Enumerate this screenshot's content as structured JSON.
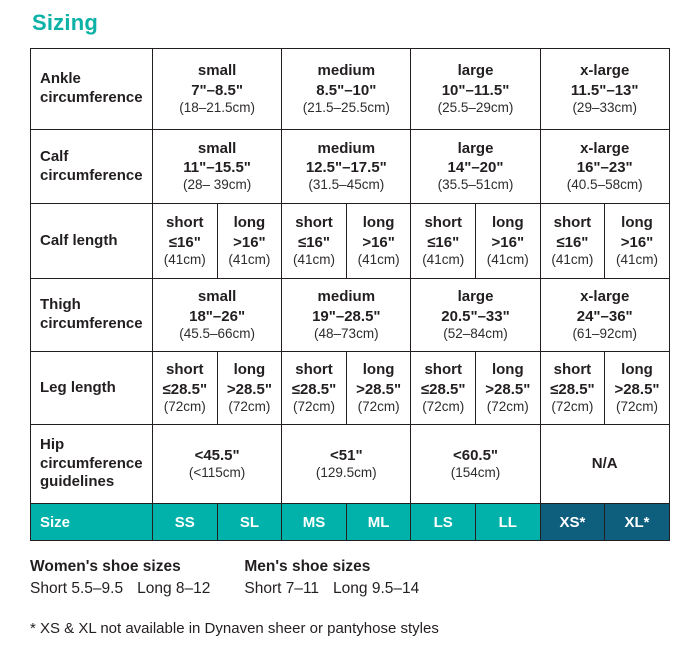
{
  "title": "Sizing",
  "colors": {
    "accent_teal": "#00b2a9",
    "dark_teal": "#0e5e7e",
    "text": "#231f20",
    "size_row_text": "#ffffff"
  },
  "table": {
    "rows": [
      {
        "label": "Ankle circumference",
        "cells": [
          {
            "size": "small",
            "range": "7\"–8.5\"",
            "metric": "(18–21.5cm)"
          },
          {
            "size": "medium",
            "range": "8.5\"–10\"",
            "metric": "(21.5–25.5cm)"
          },
          {
            "size": "large",
            "range": "10\"–11.5\"",
            "metric": "(25.5–29cm)"
          },
          {
            "size": "x-large",
            "range": "11.5\"–13\"",
            "metric": "(29–33cm)"
          }
        ]
      },
      {
        "label": "Calf circumference",
        "cells": [
          {
            "size": "small",
            "range": "11\"–15.5\"",
            "metric": "(28– 39cm)"
          },
          {
            "size": "medium",
            "range": "12.5\"–17.5\"",
            "metric": "(31.5–45cm)"
          },
          {
            "size": "large",
            "range": "14\"–20\"",
            "metric": "(35.5–51cm)"
          },
          {
            "size": "x-large",
            "range": "16\"–23\"",
            "metric": "(40.5–58cm)"
          }
        ]
      },
      {
        "label": "Calf length",
        "cells": [
          {
            "variant": "short",
            "range": "≤16\"",
            "metric": "(41cm)"
          },
          {
            "variant": "long",
            "range": ">16\"",
            "metric": "(41cm)"
          },
          {
            "variant": "short",
            "range": "≤16\"",
            "metric": "(41cm)"
          },
          {
            "variant": "long",
            "range": ">16\"",
            "metric": "(41cm)"
          },
          {
            "variant": "short",
            "range": "≤16\"",
            "metric": "(41cm)"
          },
          {
            "variant": "long",
            "range": ">16\"",
            "metric": "(41cm)"
          },
          {
            "variant": "short",
            "range": "≤16\"",
            "metric": "(41cm)"
          },
          {
            "variant": "long",
            "range": ">16\"",
            "metric": "(41cm)"
          }
        ]
      },
      {
        "label": "Thigh circumference",
        "cells": [
          {
            "size": "small",
            "range": "18\"–26\"",
            "metric": "(45.5–66cm)"
          },
          {
            "size": "medium",
            "range": "19\"–28.5\"",
            "metric": "(48–73cm)"
          },
          {
            "size": "large",
            "range": "20.5\"–33\"",
            "metric": "(52–84cm)"
          },
          {
            "size": "x-large",
            "range": "24\"–36\"",
            "metric": "(61–92cm)"
          }
        ]
      },
      {
        "label": "Leg length",
        "cells": [
          {
            "variant": "short",
            "range": "≤28.5\"",
            "metric": "(72cm)"
          },
          {
            "variant": "long",
            "range": ">28.5\"",
            "metric": "(72cm)"
          },
          {
            "variant": "short",
            "range": "≤28.5\"",
            "metric": "(72cm)"
          },
          {
            "variant": "long",
            "range": ">28.5\"",
            "metric": "(72cm)"
          },
          {
            "variant": "short",
            "range": "≤28.5\"",
            "metric": "(72cm)"
          },
          {
            "variant": "long",
            "range": ">28.5\"",
            "metric": "(72cm)"
          },
          {
            "variant": "short",
            "range": "≤28.5\"",
            "metric": "(72cm)"
          },
          {
            "variant": "long",
            "range": ">28.5\"",
            "metric": "(72cm)"
          }
        ]
      },
      {
        "label": "Hip circumference guidelines",
        "cells": [
          {
            "size": "",
            "range": "<45.5\"",
            "metric": "(<115cm)"
          },
          {
            "size": "",
            "range": "<51\"",
            "metric": "(129.5cm)"
          },
          {
            "size": "",
            "range": "<60.5\"",
            "metric": "(154cm)"
          },
          {
            "size": "",
            "range": "N/A",
            "metric": ""
          }
        ]
      }
    ],
    "size_row": {
      "label": "Size",
      "codes": [
        "SS",
        "SL",
        "MS",
        "ML",
        "LS",
        "LL",
        "XS*",
        "XL*"
      ]
    }
  },
  "footer": {
    "womens": {
      "title": "Women's shoe sizes",
      "short": "Short 5.5–9.5",
      "long": "Long 8–12"
    },
    "mens": {
      "title": "Men's shoe sizes",
      "short": "Short 7–11",
      "long": "Long 9.5–14"
    },
    "footnote": "* XS & XL not available in Dynaven sheer or pantyhose styles"
  }
}
